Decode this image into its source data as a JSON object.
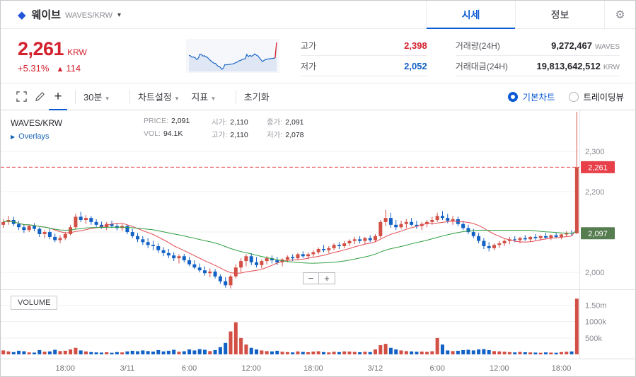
{
  "header": {
    "coin_name": "웨이브",
    "pair": "WAVES/KRW",
    "tabs": [
      {
        "label": "시세",
        "active": true
      },
      {
        "label": "정보",
        "active": false
      }
    ]
  },
  "icons": {
    "gear": "⚙",
    "chevron_down": "▾",
    "diamond": "◆",
    "play": "▶"
  },
  "price_summary": {
    "price": "2,261",
    "currency": "KRW",
    "change_percent": "+5.31%",
    "change_arrow": "▲",
    "change_amount": "114",
    "stats": [
      {
        "label": "고가",
        "value": "2,398",
        "unit": "",
        "color": "red"
      },
      {
        "label": "거래량(24H)",
        "value": "9,272,467",
        "unit": "WAVES"
      },
      {
        "label": "저가",
        "value": "2,052",
        "unit": "",
        "color": "blue"
      },
      {
        "label": "거래대금(24H)",
        "value": "19,813,642,512",
        "unit": "KRW"
      }
    ]
  },
  "toolbar": {
    "interval_label": "30분",
    "settings_label": "차트설정",
    "indicator_label": "지표",
    "reset_label": "초기화",
    "plus_label": "+",
    "chart_modes": [
      {
        "label": "기본차트",
        "selected": true
      },
      {
        "label": "트레이딩뷰",
        "selected": false
      }
    ]
  },
  "chart": {
    "symbol_label": "WAVES/KRW",
    "overlays_label": "Overlays",
    "volume_label": "VOLUME",
    "zoom_out": "−",
    "zoom_in": "+",
    "ohlc_pairs": [
      {
        "label": "PRICE:",
        "value": "2,091"
      },
      {
        "label": "시가:",
        "value": "2,110"
      },
      {
        "label": "종가:",
        "value": "2,091"
      },
      {
        "label": "VOL:",
        "value": "94.1K"
      },
      {
        "label": "고가:",
        "value": "2,110"
      },
      {
        "label": "저가:",
        "value": "2,078"
      }
    ]
  },
  "colors": {
    "up": "#d24f45",
    "down": "#1261c4",
    "accent_blue": "#0d5bd4",
    "price_red": "#d3212d",
    "ma_short": "#e34a52",
    "ma_long": "#2f9e3f",
    "current_line": "#e8404a",
    "ma_label_bg": "#567d50",
    "grid": "#f0f0f1",
    "axis_text": "#8a8a93"
  },
  "chart_data": {
    "type": "candlestick",
    "interval": "30m",
    "title": "WAVES/KRW 30분 차트",
    "price_domain": [
      1958,
      2402
    ],
    "volume_domain": [
      0,
      1900000
    ],
    "price_gridlines": [
      2300,
      2200,
      2100,
      2000
    ],
    "price_tick_labels": [
      "2,300",
      "2,200",
      "2,100",
      "2,000"
    ],
    "volume_ticks": [
      {
        "label": "1.50m",
        "value": 1500000
      },
      {
        "label": "1000k",
        "value": 1000000
      },
      {
        "label": "500k",
        "value": 500000
      }
    ],
    "x_ticks": [
      {
        "label": "18:00",
        "index": 12
      },
      {
        "label": "3/11",
        "index": 24
      },
      {
        "label": "6:00",
        "index": 36
      },
      {
        "label": "12:00",
        "index": 48
      },
      {
        "label": "18:00",
        "index": 60
      },
      {
        "label": "3/12",
        "index": 72
      },
      {
        "label": "6:00",
        "index": 84
      },
      {
        "label": "12:00",
        "index": 96
      },
      {
        "label": "18:00",
        "index": 108
      }
    ],
    "current_price": 2261,
    "current_price_label": "2,261",
    "ma_label_value": 2097,
    "ma_label_text": "2,097",
    "ma_short_window": 10,
    "ma_long_window": 30,
    "candles": [
      [
        2118,
        2132,
        2110,
        2125,
        120000
      ],
      [
        2125,
        2140,
        2118,
        2130,
        90000
      ],
      [
        2130,
        2138,
        2115,
        2120,
        70000
      ],
      [
        2120,
        2128,
        2105,
        2112,
        110000
      ],
      [
        2112,
        2120,
        2098,
        2105,
        95000
      ],
      [
        2105,
        2118,
        2100,
        2115,
        60000
      ],
      [
        2115,
        2122,
        2102,
        2108,
        55000
      ],
      [
        2108,
        2112,
        2088,
        2095,
        130000
      ],
      [
        2095,
        2105,
        2085,
        2100,
        80000
      ],
      [
        2100,
        2108,
        2082,
        2088,
        90000
      ],
      [
        2088,
        2096,
        2075,
        2080,
        140000
      ],
      [
        2080,
        2092,
        2072,
        2085,
        100000
      ],
      [
        2085,
        2100,
        2080,
        2095,
        110000
      ],
      [
        2095,
        2118,
        2092,
        2112,
        150000
      ],
      [
        2112,
        2145,
        2108,
        2138,
        200000
      ],
      [
        2138,
        2150,
        2125,
        2130,
        120000
      ],
      [
        2130,
        2142,
        2120,
        2135,
        90000
      ],
      [
        2135,
        2140,
        2118,
        2125,
        70000
      ],
      [
        2125,
        2132,
        2112,
        2118,
        60000
      ],
      [
        2118,
        2126,
        2108,
        2112,
        55000
      ],
      [
        2112,
        2125,
        2105,
        2120,
        65000
      ],
      [
        2120,
        2128,
        2110,
        2115,
        50000
      ],
      [
        2115,
        2122,
        2104,
        2110,
        70000
      ],
      [
        2110,
        2120,
        2102,
        2115,
        60000
      ],
      [
        2115,
        2118,
        2095,
        2100,
        90000
      ],
      [
        2100,
        2108,
        2085,
        2090,
        110000
      ],
      [
        2090,
        2098,
        2075,
        2082,
        95000
      ],
      [
        2082,
        2090,
        2068,
        2075,
        120000
      ],
      [
        2075,
        2085,
        2060,
        2068,
        100000
      ],
      [
        2068,
        2078,
        2055,
        2065,
        85000
      ],
      [
        2065,
        2072,
        2048,
        2055,
        130000
      ],
      [
        2055,
        2062,
        2040,
        2048,
        90000
      ],
      [
        2048,
        2058,
        2035,
        2042,
        110000
      ],
      [
        2042,
        2050,
        2028,
        2035,
        140000
      ],
      [
        2035,
        2045,
        2022,
        2040,
        80000
      ],
      [
        2040,
        2046,
        2025,
        2030,
        95000
      ],
      [
        2030,
        2038,
        2015,
        2020,
        150000
      ],
      [
        2020,
        2030,
        2008,
        2012,
        120000
      ],
      [
        2012,
        2022,
        2000,
        2005,
        160000
      ],
      [
        2005,
        2015,
        1992,
        1998,
        140000
      ],
      [
        1998,
        2010,
        1988,
        2002,
        100000
      ],
      [
        2002,
        2008,
        1985,
        1990,
        130000
      ],
      [
        1990,
        1995,
        1972,
        1978,
        220000
      ],
      [
        1978,
        1988,
        1962,
        1968,
        350000
      ],
      [
        1968,
        1995,
        1960,
        1990,
        700000
      ],
      [
        1990,
        2020,
        1985,
        2012,
        980000
      ],
      [
        2012,
        2035,
        2000,
        2028,
        500000
      ],
      [
        2028,
        2045,
        2015,
        2040,
        300000
      ],
      [
        2040,
        2048,
        2018,
        2025,
        200000
      ],
      [
        2025,
        2038,
        2012,
        2018,
        150000
      ],
      [
        2018,
        2032,
        2010,
        2028,
        120000
      ],
      [
        2028,
        2040,
        2020,
        2035,
        100000
      ],
      [
        2035,
        2042,
        2022,
        2030,
        90000
      ],
      [
        2030,
        2038,
        2018,
        2025,
        110000
      ],
      [
        2025,
        2035,
        2015,
        2032,
        80000
      ],
      [
        2032,
        2042,
        2025,
        2038,
        70000
      ],
      [
        2038,
        2045,
        2028,
        2035,
        60000
      ],
      [
        2035,
        2048,
        2030,
        2045,
        90000
      ],
      [
        2045,
        2052,
        2035,
        2040,
        75000
      ],
      [
        2040,
        2050,
        2032,
        2045,
        65000
      ],
      [
        2045,
        2055,
        2038,
        2050,
        85000
      ],
      [
        2050,
        2062,
        2045,
        2058,
        95000
      ],
      [
        2058,
        2068,
        2050,
        2055,
        70000
      ],
      [
        2055,
        2065,
        2048,
        2060,
        60000
      ],
      [
        2060,
        2072,
        2055,
        2068,
        80000
      ],
      [
        2068,
        2075,
        2058,
        2065,
        70000
      ],
      [
        2065,
        2078,
        2060,
        2072,
        90000
      ],
      [
        2072,
        2082,
        2065,
        2078,
        85000
      ],
      [
        2078,
        2088,
        2070,
        2082,
        75000
      ],
      [
        2082,
        2090,
        2072,
        2078,
        65000
      ],
      [
        2078,
        2088,
        2070,
        2085,
        80000
      ],
      [
        2085,
        2092,
        2075,
        2080,
        70000
      ],
      [
        2080,
        2095,
        2075,
        2090,
        150000
      ],
      [
        2090,
        2130,
        2085,
        2125,
        280000
      ],
      [
        2125,
        2155,
        2115,
        2135,
        320000
      ],
      [
        2135,
        2148,
        2110,
        2118,
        200000
      ],
      [
        2118,
        2130,
        2105,
        2112,
        150000
      ],
      [
        2112,
        2128,
        2108,
        2120,
        120000
      ],
      [
        2120,
        2132,
        2110,
        2125,
        100000
      ],
      [
        2125,
        2135,
        2115,
        2118,
        90000
      ],
      [
        2118,
        2128,
        2108,
        2115,
        80000
      ],
      [
        2115,
        2125,
        2105,
        2120,
        85000
      ],
      [
        2120,
        2130,
        2112,
        2125,
        75000
      ],
      [
        2125,
        2138,
        2118,
        2130,
        95000
      ],
      [
        2130,
        2148,
        2125,
        2140,
        500000
      ],
      [
        2140,
        2152,
        2130,
        2135,
        300000
      ],
      [
        2135,
        2145,
        2122,
        2128,
        120000
      ],
      [
        2128,
        2140,
        2118,
        2132,
        100000
      ],
      [
        2132,
        2138,
        2115,
        2120,
        110000
      ],
      [
        2120,
        2128,
        2105,
        2110,
        130000
      ],
      [
        2110,
        2118,
        2095,
        2100,
        140000
      ],
      [
        2100,
        2108,
        2085,
        2090,
        120000
      ],
      [
        2090,
        2098,
        2072,
        2078,
        150000
      ],
      [
        2078,
        2085,
        2058,
        2065,
        160000
      ],
      [
        2065,
        2075,
        2052,
        2060,
        130000
      ],
      [
        2060,
        2072,
        2055,
        2068,
        100000
      ],
      [
        2068,
        2078,
        2060,
        2072,
        90000
      ],
      [
        2072,
        2082,
        2065,
        2078,
        80000
      ],
      [
        2078,
        2088,
        2070,
        2082,
        70000
      ],
      [
        2082,
        2090,
        2075,
        2080,
        60000
      ],
      [
        2080,
        2088,
        2072,
        2085,
        75000
      ],
      [
        2085,
        2092,
        2078,
        2082,
        65000
      ],
      [
        2082,
        2090,
        2075,
        2088,
        60000
      ],
      [
        2088,
        2095,
        2080,
        2085,
        55000
      ],
      [
        2085,
        2092,
        2078,
        2090,
        50000
      ],
      [
        2090,
        2098,
        2082,
        2086,
        60000
      ],
      [
        2086,
        2094,
        2080,
        2092,
        55000
      ],
      [
        2092,
        2098,
        2084,
        2088,
        50000
      ],
      [
        2088,
        2096,
        2082,
        2094,
        70000
      ],
      [
        2094,
        2102,
        2088,
        2098,
        80000
      ],
      [
        2098,
        2105,
        2090,
        2097,
        90000
      ],
      [
        2097,
        2398,
        2095,
        2261,
        1700000
      ]
    ]
  }
}
